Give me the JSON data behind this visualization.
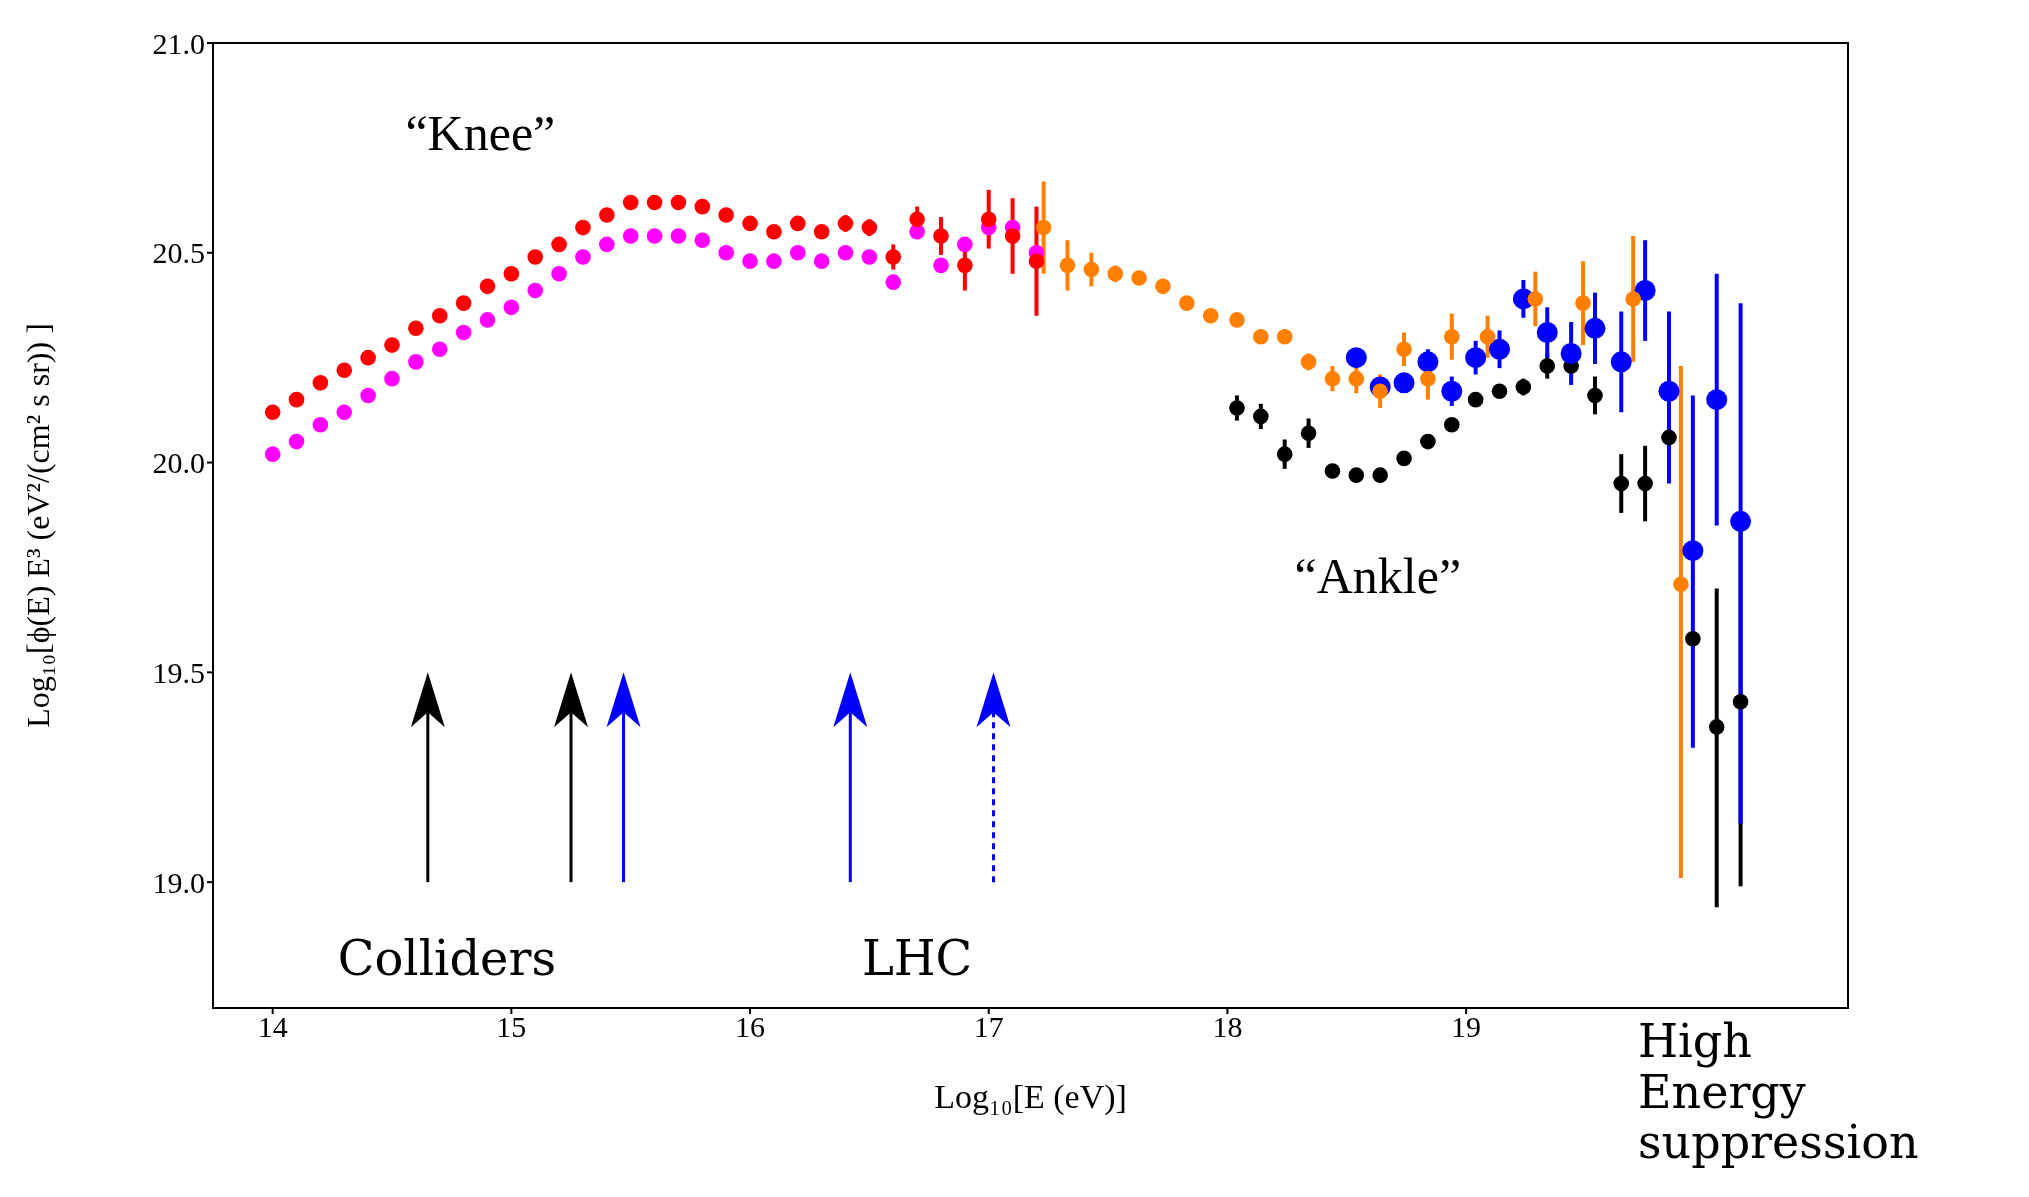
{
  "chart_data": {
    "type": "scatter",
    "xlabel": "Log₁₀[E (eV)]",
    "ylabel": "Log₁₀[ϕ(E) E³ (eV²/(cm² s sr)) ]",
    "xlim": [
      13.75,
      20.6
    ],
    "xticks": [
      14,
      15,
      16,
      17,
      18,
      19
    ],
    "ylim": [
      18.7,
      21.0
    ],
    "yticks": [
      {
        "value": 19,
        "label": "19.0"
      },
      19.5,
      {
        "value": 20,
        "label": "20.0"
      },
      20.5,
      {
        "value": 21,
        "label": "21.0"
      }
    ],
    "grid": false,
    "legend": false,
    "marker": "circle",
    "annotations": [
      "“Knee”",
      "“Ankle”",
      "Colliders",
      "LHC",
      "High Energy suppression"
    ],
    "series": [
      {
        "color": "#ff00ff",
        "x": [
          14.0,
          14.1,
          14.2,
          14.3,
          14.4,
          14.5,
          14.6,
          14.7,
          14.8,
          14.9,
          15.0,
          15.1,
          15.2,
          15.3,
          15.4,
          15.5,
          15.6,
          15.7,
          15.8,
          15.9,
          16.0,
          16.1,
          16.2,
          16.3,
          16.4,
          16.5,
          16.6,
          16.7,
          16.8,
          16.9,
          17.0,
          17.1,
          17.2
        ],
        "values": [
          20.02,
          20.05,
          20.09,
          20.12,
          20.16,
          20.2,
          20.24,
          20.27,
          20.31,
          20.34,
          20.37,
          20.41,
          20.45,
          20.49,
          20.52,
          20.54,
          20.54,
          20.54,
          20.53,
          20.5,
          20.48,
          20.48,
          20.5,
          20.48,
          20.5,
          20.49,
          20.43,
          20.55,
          20.47,
          20.52,
          20.56,
          20.56,
          20.5
        ]
      },
      {
        "color": "#ff0000",
        "x": [
          14.0,
          14.1,
          14.2,
          14.3,
          14.4,
          14.5,
          14.6,
          14.7,
          14.8,
          14.9,
          15.0,
          15.1,
          15.2,
          15.3,
          15.4,
          15.5,
          15.6,
          15.7,
          15.8,
          15.9,
          16.0,
          16.1,
          16.2,
          16.3,
          16.4,
          16.5,
          16.6,
          16.7,
          16.8,
          16.9,
          17.0,
          17.1,
          17.2
        ],
        "values": [
          20.12,
          20.15,
          20.19,
          20.22,
          20.25,
          20.28,
          20.32,
          20.35,
          20.38,
          20.42,
          20.45,
          20.49,
          20.52,
          20.56,
          20.59,
          20.62,
          20.62,
          20.62,
          20.61,
          20.59,
          20.57,
          20.55,
          20.57,
          20.55,
          20.57,
          20.56,
          20.49,
          20.58,
          20.54,
          20.47,
          20.58,
          20.54,
          20.48
        ],
        "errors": [
          null,
          null,
          null,
          null,
          null,
          null,
          null,
          null,
          null,
          null,
          null,
          null,
          null,
          null,
          null,
          null,
          null,
          null,
          null,
          null,
          null,
          null,
          null,
          null,
          0.02,
          0.02,
          0.03,
          0.03,
          0.045,
          0.06,
          0.07,
          0.09,
          0.13
        ]
      },
      {
        "color": "#000000",
        "x": [
          18.04,
          18.14,
          18.24,
          18.34,
          18.44,
          18.54,
          18.64,
          18.74,
          18.84,
          18.94,
          19.04,
          19.14,
          19.24,
          19.34,
          19.44,
          19.54,
          19.65,
          19.75,
          19.85,
          19.95,
          20.05,
          20.15
        ],
        "values": [
          20.13,
          20.11,
          20.02,
          20.07,
          19.98,
          19.97,
          19.97,
          20.01,
          20.05,
          20.09,
          20.15,
          20.17,
          20.18,
          20.23,
          20.23,
          20.16,
          19.95,
          19.95,
          20.06,
          19.58,
          19.37,
          19.43
        ],
        "errors": [
          0.03,
          0.03,
          0.035,
          0.035,
          null,
          null,
          null,
          null,
          null,
          null,
          null,
          null,
          0.02,
          0.03,
          null,
          0.045,
          0.07,
          0.09,
          null,
          null,
          [
            18.94,
            19.7
          ],
          0.44
        ]
      },
      {
        "color": "#0000ff",
        "x": [
          18.54,
          18.64,
          18.74,
          18.84,
          18.94,
          19.04,
          19.14,
          19.24,
          19.34,
          19.44,
          19.54,
          19.65,
          19.75,
          19.85,
          19.95,
          20.05,
          20.15
        ],
        "values": [
          20.25,
          20.18,
          20.19,
          20.24,
          20.17,
          20.25,
          20.27,
          20.39,
          20.31,
          20.26,
          20.32,
          20.24,
          20.41,
          20.17,
          19.79,
          20.15,
          19.86
        ],
        "errors": [
          0.02,
          null,
          null,
          0.03,
          0.035,
          0.04,
          0.045,
          0.045,
          0.06,
          0.075,
          0.085,
          0.12,
          0.12,
          [
            19.95,
            20.36
          ],
          [
            19.32,
            20.16
          ],
          0.3,
          [
            19.14,
            20.38
          ]
        ]
      },
      {
        "color": "#ff8000",
        "x": [
          17.23,
          17.33,
          17.43,
          17.53,
          17.63,
          17.73,
          17.83,
          17.93,
          18.04,
          18.14,
          18.24,
          18.34,
          18.44,
          18.54,
          18.64,
          18.74,
          18.84,
          18.94,
          19.09,
          19.29,
          19.49,
          19.7,
          19.9
        ],
        "values": [
          20.56,
          20.47,
          20.46,
          20.45,
          20.44,
          20.42,
          20.38,
          20.35,
          20.34,
          20.3,
          20.3,
          20.24,
          20.2,
          20.2,
          20.17,
          20.27,
          20.2,
          20.3,
          20.3,
          20.39,
          20.38,
          20.39,
          19.71
        ],
        "errors": [
          0.11,
          0.06,
          0.04,
          0.02,
          null,
          null,
          null,
          null,
          null,
          null,
          null,
          0.02,
          0.03,
          0.035,
          0.04,
          0.04,
          0.05,
          0.055,
          0.05,
          0.065,
          0.1,
          0.15,
          [
            19.01,
            20.23
          ]
        ]
      }
    ]
  }
}
